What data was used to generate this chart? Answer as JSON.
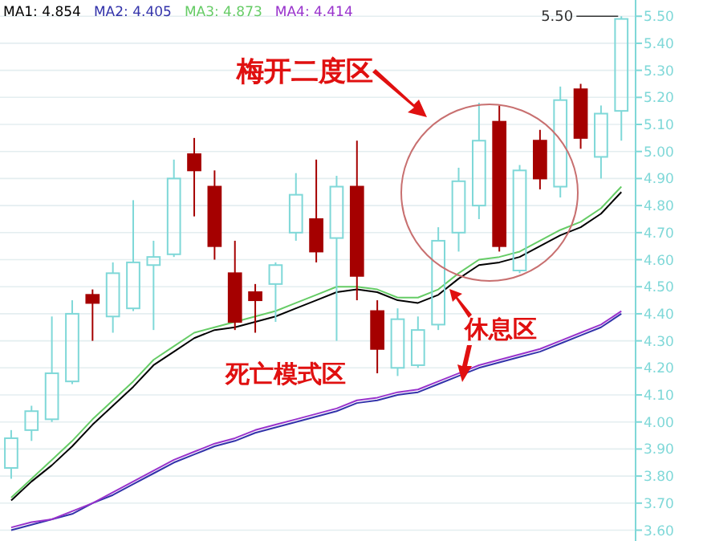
{
  "chart_data": {
    "type": "candlestick",
    "categories": [
      null,
      null,
      null,
      null,
      null,
      null,
      null,
      null,
      null,
      null,
      null,
      null,
      null,
      null,
      null,
      null,
      null,
      null,
      null,
      null,
      null,
      null,
      null,
      null,
      null,
      null,
      null,
      null,
      null,
      null,
      null
    ],
    "ohlc": [
      [
        3.83,
        3.97,
        3.79,
        3.94
      ],
      [
        3.97,
        4.06,
        3.93,
        4.04
      ],
      [
        4.01,
        4.39,
        4.0,
        4.18
      ],
      [
        4.15,
        4.45,
        4.14,
        4.4
      ],
      [
        4.47,
        4.49,
        4.3,
        4.44
      ],
      [
        4.39,
        4.59,
        4.33,
        4.55
      ],
      [
        4.42,
        4.82,
        4.41,
        4.59
      ],
      [
        4.58,
        4.67,
        4.34,
        4.61
      ],
      [
        4.62,
        4.97,
        4.61,
        4.9
      ],
      [
        4.99,
        5.05,
        4.76,
        4.93
      ],
      [
        4.87,
        4.93,
        4.6,
        4.65
      ],
      [
        4.55,
        4.67,
        4.34,
        4.37
      ],
      [
        4.48,
        4.51,
        4.33,
        4.45
      ],
      [
        4.51,
        4.59,
        4.37,
        4.58
      ],
      [
        4.7,
        4.92,
        4.67,
        4.84
      ],
      [
        4.75,
        4.97,
        4.59,
        4.63
      ],
      [
        4.68,
        4.91,
        4.3,
        4.87
      ],
      [
        4.87,
        5.04,
        4.45,
        4.54
      ],
      [
        4.41,
        4.45,
        4.18,
        4.27
      ],
      [
        4.2,
        4.42,
        4.17,
        4.38
      ],
      [
        4.21,
        4.39,
        4.2,
        4.34
      ],
      [
        4.36,
        4.72,
        4.34,
        4.67
      ],
      [
        4.7,
        4.94,
        4.63,
        4.89
      ],
      [
        4.8,
        5.18,
        4.75,
        5.04
      ],
      [
        5.11,
        5.17,
        4.63,
        4.65
      ],
      [
        4.56,
        4.95,
        4.55,
        4.93
      ],
      [
        5.04,
        5.08,
        4.86,
        4.9
      ],
      [
        4.87,
        5.24,
        4.83,
        5.19
      ],
      [
        5.23,
        5.25,
        5.01,
        5.05
      ],
      [
        4.98,
        5.17,
        4.9,
        5.14
      ],
      [
        5.15,
        5.5,
        5.04,
        5.49
      ]
    ],
    "colors": [
      "#7fd8d8",
      "#7fd8d8",
      "#7fd8d8",
      "#7fd8d8",
      "#a50000",
      "#7fd8d8",
      "#7fd8d8",
      "#7fd8d8",
      "#7fd8d8",
      "#a50000",
      "#a50000",
      "#a50000",
      "#a50000",
      "#7fd8d8",
      "#7fd8d8",
      "#a50000",
      "#7fd8d8",
      "#a50000",
      "#a50000",
      "#7fd8d8",
      "#7fd8d8",
      "#7fd8d8",
      "#7fd8d8",
      "#7fd8d8",
      "#a50000",
      "#7fd8d8",
      "#a50000",
      "#7fd8d8",
      "#a50000",
      "#7fd8d8",
      "#7fd8d8"
    ],
    "series": [
      {
        "name": "MA1: 4.854",
        "type": "line",
        "color": "#000000",
        "values": [
          3.71,
          3.78,
          3.84,
          3.91,
          3.99,
          4.06,
          4.13,
          4.21,
          4.26,
          4.31,
          4.34,
          4.35,
          4.37,
          4.39,
          4.42,
          4.45,
          4.48,
          4.49,
          4.48,
          4.45,
          4.44,
          4.47,
          4.53,
          4.58,
          4.59,
          4.61,
          4.65,
          4.69,
          4.72,
          4.77,
          4.85
        ]
      },
      {
        "name": "MA2: 4.405",
        "type": "line",
        "color": "#3333aa",
        "values": [
          3.6,
          3.62,
          3.64,
          3.66,
          3.7,
          3.73,
          3.77,
          3.81,
          3.85,
          3.88,
          3.91,
          3.93,
          3.96,
          3.98,
          4.0,
          4.02,
          4.04,
          4.07,
          4.08,
          4.1,
          4.11,
          4.14,
          4.17,
          4.2,
          4.22,
          4.24,
          4.26,
          4.29,
          4.32,
          4.35,
          4.4
        ]
      },
      {
        "name": "MA3: 4.873",
        "type": "line",
        "color": "#66cc66",
        "values": [
          3.72,
          3.79,
          3.86,
          3.93,
          4.01,
          4.08,
          4.15,
          4.23,
          4.28,
          4.33,
          4.35,
          4.37,
          4.39,
          4.41,
          4.44,
          4.47,
          4.5,
          4.5,
          4.49,
          4.46,
          4.46,
          4.49,
          4.55,
          4.6,
          4.61,
          4.63,
          4.67,
          4.71,
          4.74,
          4.79,
          4.87
        ]
      },
      {
        "name": "MA4: 4.414",
        "type": "line",
        "color": "#9933cc",
        "values": [
          3.61,
          3.63,
          3.64,
          3.67,
          3.7,
          3.74,
          3.78,
          3.82,
          3.86,
          3.89,
          3.92,
          3.94,
          3.97,
          3.99,
          4.01,
          4.03,
          4.05,
          4.08,
          4.09,
          4.11,
          4.12,
          4.15,
          4.18,
          4.21,
          4.23,
          4.25,
          4.27,
          4.3,
          4.33,
          4.36,
          4.41
        ]
      }
    ],
    "ylim": [
      3.56,
      5.56
    ],
    "yticks": [
      {
        "value": 3.6,
        "label": "3.60"
      },
      {
        "value": 3.7,
        "label": "3.70"
      },
      {
        "value": 3.8,
        "label": "3.80"
      },
      {
        "value": 3.9,
        "label": "3.90"
      },
      {
        "value": 4.0,
        "label": "4.00"
      },
      {
        "value": 4.1,
        "label": "4.10"
      },
      {
        "value": 4.2,
        "label": "4.20"
      },
      {
        "value": 4.3,
        "label": "4.30"
      },
      {
        "value": 4.4,
        "label": "4.40"
      },
      {
        "value": 4.5,
        "label": "4.50"
      },
      {
        "value": 4.6,
        "label": "4.60"
      },
      {
        "value": 4.7,
        "label": "4.70"
      },
      {
        "value": 4.8,
        "label": "4.80"
      },
      {
        "value": 4.9,
        "label": "4.90"
      },
      {
        "value": 5.0,
        "label": "5.00"
      },
      {
        "value": 5.1,
        "label": "5.10"
      },
      {
        "value": 5.2,
        "label": "5.20"
      },
      {
        "value": 5.3,
        "label": "5.30"
      },
      {
        "value": 5.4,
        "label": "5.40"
      },
      {
        "value": 5.5,
        "label": "5.50"
      }
    ],
    "grid": "y",
    "legend": "top left",
    "annotations": [
      "梅开二度区",
      "死亡模式区",
      "休息区",
      "5.50"
    ]
  }
}
